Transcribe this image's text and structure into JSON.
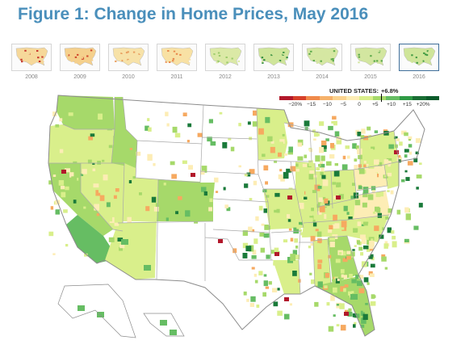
{
  "title": "Figure 1: Change in Home Prices, May 2016",
  "years": [
    "2008",
    "2009",
    "2010",
    "2011",
    "2012",
    "2013",
    "2014",
    "2015",
    "2016"
  ],
  "selected_year": "2016",
  "thumb_tints": [
    {
      "base": "#f6d89a",
      "hot": "#c8352b"
    },
    {
      "base": "#f5d08c",
      "hot": "#d14a2e"
    },
    {
      "base": "#f7e2a8",
      "hot": "#e9a061"
    },
    {
      "base": "#f8e1a4",
      "hot": "#e8894d"
    },
    {
      "base": "#dbe9a6",
      "hot": "#9ccb6b"
    },
    {
      "base": "#cfe59a",
      "hot": "#2f8a3c"
    },
    {
      "base": "#d5e7a2",
      "hot": "#5aa94a"
    },
    {
      "base": "#d3e6a0",
      "hot": "#5aa94a"
    },
    {
      "base": "#cfe59a",
      "hot": "#3f9a42"
    }
  ],
  "legend": {
    "label": "UNITED STATES:",
    "value": "+6.8%",
    "value_number": 6.8,
    "scale_min": -25,
    "scale_max": 25,
    "colors": [
      "#b2182b",
      "#d6402a",
      "#f08a4b",
      "#f6b26b",
      "#fbd38f",
      "#fdedb5",
      "#d9ef8b",
      "#a6d96a",
      "#66bd63",
      "#2f9a45",
      "#1a6e34",
      "#0b5a2a"
    ],
    "ticks": [
      "−20%",
      "−15",
      "−10",
      "−5",
      "0",
      "+5",
      "+10",
      "+15",
      "+20%"
    ],
    "tick_values": [
      -20,
      -15,
      -10,
      -5,
      0,
      5,
      10,
      15,
      20
    ]
  },
  "map_colors": {
    "no_data": "#ffffff",
    "state_border": "#a9a9a9",
    "outline": "#8c8c8c",
    "light_green": "#d9ef8b",
    "mid_green": "#a6d96a",
    "green": "#66bd63",
    "dark_green": "#1a7a3a",
    "yellow": "#fdedb5",
    "orange": "#f6a960",
    "red": "#b2182b"
  }
}
